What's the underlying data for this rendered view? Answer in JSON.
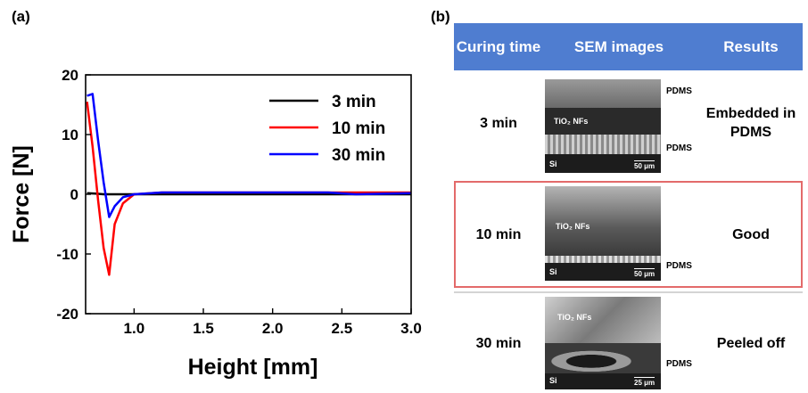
{
  "panel_a_label": "(a)",
  "panel_b_label": "(b)",
  "chart_data": {
    "type": "line",
    "xlabel": "Height [mm]",
    "ylabel": "Force [N]",
    "xlim": [
      0.65,
      3.0
    ],
    "ylim": [
      -20,
      20
    ],
    "xticks": [
      1.0,
      1.5,
      2.0,
      2.5,
      3.0
    ],
    "xtick_labels": [
      "1.0",
      "1.5",
      "2.0",
      "2.5",
      "3.0"
    ],
    "yticks": [
      20,
      10,
      0,
      -10,
      -20
    ],
    "ytick_labels": [
      "20",
      "10",
      "0",
      "-10",
      "-20"
    ],
    "grid": false,
    "legend_position": "top-right",
    "series": [
      {
        "name": "3 min",
        "color": "#000000",
        "x": [
          0.66,
          0.72,
          0.78,
          0.85,
          3.0
        ],
        "y": [
          0.2,
          0.1,
          0.0,
          0.0,
          0.0
        ]
      },
      {
        "name": "10 min",
        "color": "#ff0000",
        "x": [
          0.66,
          0.7,
          0.74,
          0.78,
          0.82,
          0.86,
          0.92,
          1.0,
          1.2,
          3.0
        ],
        "y": [
          15.5,
          8.0,
          -1.0,
          -9.0,
          -13.5,
          -5.0,
          -1.5,
          0.0,
          0.3,
          0.3
        ]
      },
      {
        "name": "30 min",
        "color": "#0000ff",
        "x": [
          0.66,
          0.7,
          0.74,
          0.78,
          0.82,
          0.86,
          0.92,
          1.0,
          1.2,
          2.4,
          2.6,
          3.0
        ],
        "y": [
          16.5,
          16.8,
          9.0,
          2.0,
          -3.8,
          -2.0,
          -0.5,
          0.0,
          0.3,
          0.3,
          0.0,
          0.2
        ]
      }
    ]
  },
  "table": {
    "header_color": "#4f7dd0",
    "highlight_color": "#e36a6a",
    "headers": [
      "Curing time",
      "SEM images",
      "Results"
    ],
    "rows": [
      {
        "curing_time": "3 min",
        "result": "Embedded in PDMS",
        "sem": {
          "layer_label": "TiO₂ NFs",
          "substrate": "Si",
          "scale": "50 μm",
          "annotations": [
            "PDMS",
            "PDMS"
          ]
        }
      },
      {
        "curing_time": "10 min",
        "result": "Good",
        "sem": {
          "layer_label": "TiO₂ NFs",
          "substrate": "Si",
          "scale": "50 μm",
          "annotations": [
            "PDMS"
          ]
        }
      },
      {
        "curing_time": "30 min",
        "result": "Peeled off",
        "sem": {
          "layer_label": "TiO₂ NFs",
          "substrate": "Si",
          "scale": "25 μm",
          "annotations": [
            "PDMS"
          ]
        }
      }
    ]
  }
}
